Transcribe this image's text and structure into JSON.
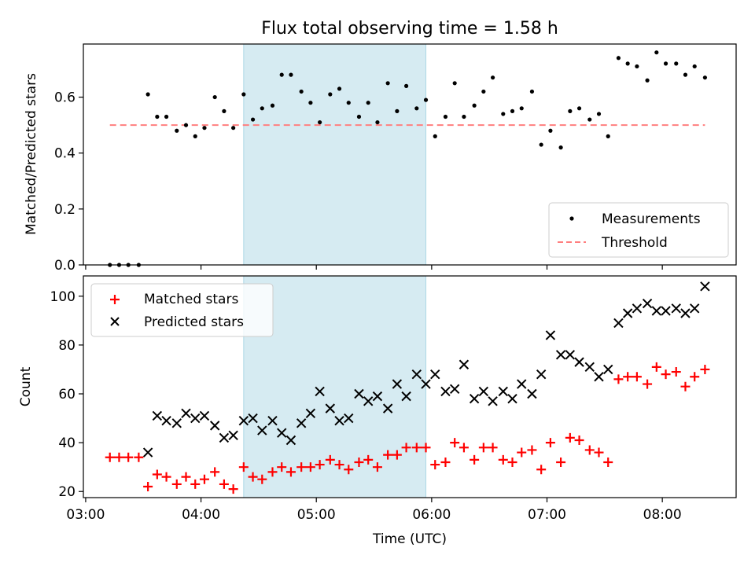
{
  "figure": {
    "title": "Flux total observing time = 1.58 h",
    "xlabel": "Time (UTC)"
  },
  "chart_data": [
    {
      "type": "scatter",
      "panel": "top",
      "ylabel": "Matched/Predicted stars",
      "xlabel": "Time (UTC)",
      "x_unit": "hours UTC",
      "xlim": [
        2.98,
        8.64
      ],
      "ylim": [
        0,
        0.79
      ],
      "yticks": [
        0.0,
        0.2,
        0.4,
        0.6
      ],
      "ytick_labels": [
        "0.0",
        "0.2",
        "0.4",
        "0.6"
      ],
      "highlight_span": {
        "x": [
          4.37,
          5.95
        ],
        "color": "#add8e6"
      },
      "grid": false,
      "legend": {
        "position": "lower-right",
        "entries": [
          "Measurements",
          "Threshold"
        ]
      },
      "series": [
        {
          "name": "Measurements",
          "marker": "dot",
          "color": "#000000",
          "x": [
            3.21,
            3.29,
            3.37,
            3.46,
            3.54,
            3.62,
            3.7,
            3.79,
            3.87,
            3.95,
            4.03,
            4.12,
            4.2,
            4.28,
            4.37,
            4.45,
            4.53,
            4.62,
            4.7,
            4.78,
            4.87,
            4.95,
            5.03,
            5.12,
            5.2,
            5.28,
            5.37,
            5.45,
            5.53,
            5.62,
            5.7,
            5.78,
            5.87,
            5.95,
            6.03,
            6.12,
            6.2,
            6.28,
            6.37,
            6.45,
            6.53,
            6.62,
            6.7,
            6.78,
            6.87,
            6.95,
            7.03,
            7.12,
            7.2,
            7.28,
            7.37,
            7.45,
            7.53,
            7.62,
            7.7,
            7.78,
            7.87,
            7.95,
            8.03,
            8.12,
            8.2,
            8.28,
            8.37
          ],
          "y": [
            0.0,
            0.0,
            0.0,
            0.0,
            0.61,
            0.53,
            0.53,
            0.48,
            0.5,
            0.46,
            0.49,
            0.6,
            0.55,
            0.49,
            0.61,
            0.52,
            0.56,
            0.57,
            0.68,
            0.68,
            0.62,
            0.58,
            0.51,
            0.61,
            0.63,
            0.58,
            0.53,
            0.58,
            0.51,
            0.65,
            0.55,
            0.64,
            0.56,
            0.59,
            0.46,
            0.53,
            0.65,
            0.53,
            0.57,
            0.62,
            0.67,
            0.54,
            0.55,
            0.56,
            0.62,
            0.43,
            0.48,
            0.42,
            0.55,
            0.56,
            0.52,
            0.54,
            0.46,
            0.74,
            0.72,
            0.71,
            0.66,
            0.76,
            0.72,
            0.72,
            0.68,
            0.71,
            0.67
          ]
        },
        {
          "name": "Threshold",
          "marker": "dashed-line",
          "color": "#ff7f7f",
          "x": [
            3.21,
            8.37
          ],
          "y": [
            0.5,
            0.5
          ]
        }
      ]
    },
    {
      "type": "scatter",
      "panel": "bottom",
      "ylabel": "Count",
      "xlabel": "Time (UTC)",
      "x_unit": "hours UTC",
      "xlim": [
        2.98,
        8.64
      ],
      "ylim": [
        17.5,
        108.3
      ],
      "yticks": [
        20,
        40,
        60,
        80,
        100
      ],
      "ytick_labels": [
        "20",
        "40",
        "60",
        "80",
        "100"
      ],
      "xticks": [
        3,
        4,
        5,
        6,
        7,
        8
      ],
      "xtick_labels": [
        "03:00",
        "04:00",
        "05:00",
        "06:00",
        "07:00",
        "08:00"
      ],
      "highlight_span": {
        "x": [
          4.37,
          5.95
        ],
        "color": "#add8e6"
      },
      "grid": false,
      "legend": {
        "position": "top-left",
        "entries": [
          "Matched stars",
          "Predicted stars"
        ]
      },
      "series": [
        {
          "name": "Matched stars",
          "marker": "plus",
          "color": "#ff0000",
          "x": [
            3.21,
            3.29,
            3.37,
            3.46,
            3.54,
            3.62,
            3.7,
            3.79,
            3.87,
            3.95,
            4.03,
            4.12,
            4.2,
            4.28,
            4.37,
            4.45,
            4.53,
            4.62,
            4.7,
            4.78,
            4.87,
            4.95,
            5.03,
            5.12,
            5.2,
            5.28,
            5.37,
            5.45,
            5.53,
            5.62,
            5.7,
            5.78,
            5.87,
            5.95,
            6.03,
            6.12,
            6.2,
            6.28,
            6.37,
            6.45,
            6.53,
            6.62,
            6.7,
            6.78,
            6.87,
            6.95,
            7.03,
            7.12,
            7.2,
            7.28,
            7.37,
            7.45,
            7.53,
            7.62,
            7.7,
            7.78,
            7.87,
            7.95,
            8.03,
            8.12,
            8.2,
            8.28,
            8.37
          ],
          "y": [
            34,
            34,
            34,
            34,
            22,
            27,
            26,
            23,
            26,
            23,
            25,
            28,
            23,
            21,
            30,
            26,
            25,
            28,
            30,
            28,
            30,
            30,
            31,
            33,
            31,
            29,
            32,
            33,
            30,
            35,
            35,
            38,
            38,
            38,
            31,
            32,
            40,
            38,
            33,
            38,
            38,
            33,
            32,
            36,
            37,
            29,
            40,
            32,
            42,
            41,
            37,
            36,
            32,
            66,
            67,
            67,
            64,
            71,
            68,
            69,
            63,
            67,
            70
          ]
        },
        {
          "name": "Predicted stars",
          "marker": "x",
          "color": "#000000",
          "x": [
            3.54,
            3.62,
            3.7,
            3.79,
            3.87,
            3.95,
            4.03,
            4.12,
            4.2,
            4.28,
            4.37,
            4.45,
            4.53,
            4.62,
            4.7,
            4.78,
            4.87,
            4.95,
            5.03,
            5.12,
            5.2,
            5.28,
            5.37,
            5.45,
            5.53,
            5.62,
            5.7,
            5.78,
            5.87,
            5.95,
            6.03,
            6.12,
            6.2,
            6.28,
            6.37,
            6.45,
            6.53,
            6.62,
            6.7,
            6.78,
            6.87,
            6.95,
            7.03,
            7.12,
            7.2,
            7.28,
            7.37,
            7.45,
            7.53,
            7.62,
            7.7,
            7.78,
            7.87,
            7.95,
            8.03,
            8.12,
            8.2,
            8.28,
            8.37
          ],
          "y": [
            36,
            51,
            49,
            48,
            52,
            50,
            51,
            47,
            42,
            43,
            49,
            50,
            45,
            49,
            44,
            41,
            48,
            52,
            61,
            54,
            49,
            50,
            60,
            57,
            59,
            54,
            64,
            59,
            68,
            64,
            68,
            61,
            62,
            72,
            58,
            61,
            57,
            61,
            58,
            64,
            60,
            68,
            84,
            76,
            76,
            73,
            71,
            67,
            70,
            89,
            93,
            95,
            97,
            94,
            94,
            95,
            93,
            95,
            104
          ]
        }
      ]
    }
  ]
}
